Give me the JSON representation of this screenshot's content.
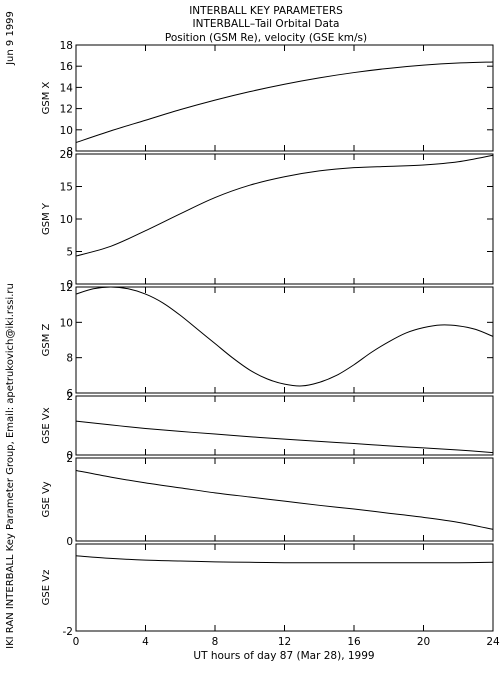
{
  "header": {
    "line1": "INTERBALL KEY PARAMETERS",
    "line2": "INTERBALL–Tail Orbital Data",
    "line3": "Position (GSM Re), velocity (GSE km/s)"
  },
  "side": {
    "date": "Jun  9 1999",
    "credit": "IKI RAN INTERBALL Key Parameter Group, Email: apetrukovich@iki.rssi.ru"
  },
  "chart_data": {
    "type": "line",
    "xlabel": "UT hours of day  87 (Mar 28), 1999",
    "xlim": [
      0,
      24
    ],
    "xticks": [
      0,
      4,
      8,
      12,
      16,
      20,
      24
    ],
    "panels": [
      {
        "ylabel": "GSM X",
        "ylim": [
          8,
          18
        ],
        "yticks": [
          8,
          10,
          12,
          14,
          16,
          18
        ],
        "x": [
          0,
          2,
          4,
          6,
          8,
          10,
          12,
          14,
          16,
          18,
          20,
          22,
          24
        ],
        "y": [
          8.8,
          9.9,
          10.9,
          11.9,
          12.8,
          13.6,
          14.3,
          14.9,
          15.4,
          15.8,
          16.1,
          16.3,
          16.4
        ]
      },
      {
        "ylabel": "GSM Y",
        "ylim": [
          0,
          20
        ],
        "yticks": [
          0,
          5,
          10,
          15,
          20
        ],
        "x": [
          0,
          2,
          4,
          6,
          8,
          10,
          12,
          14,
          16,
          18,
          20,
          22,
          24
        ],
        "y": [
          4.3,
          5.8,
          8.2,
          10.8,
          13.3,
          15.2,
          16.5,
          17.4,
          17.9,
          18.1,
          18.3,
          18.8,
          19.8
        ]
      },
      {
        "ylabel": "GSM Z",
        "ylim": [
          6,
          12
        ],
        "yticks": [
          6,
          8,
          10,
          12
        ],
        "x": [
          0,
          1,
          2,
          3,
          4,
          5,
          6,
          7,
          8,
          9,
          10,
          11,
          12,
          13,
          14,
          15,
          16,
          17,
          18,
          19,
          20,
          21,
          22,
          23,
          24
        ],
        "y": [
          11.6,
          11.9,
          12.0,
          11.9,
          11.6,
          11.1,
          10.4,
          9.6,
          8.8,
          8.0,
          7.3,
          6.8,
          6.5,
          6.4,
          6.6,
          7.0,
          7.6,
          8.3,
          8.9,
          9.4,
          9.7,
          9.85,
          9.8,
          9.6,
          9.2
        ]
      },
      {
        "ylabel": "GSE Vx",
        "ylim": [
          0,
          2
        ],
        "yticks": [
          0,
          2
        ],
        "x": [
          0,
          2,
          4,
          6,
          8,
          10,
          12,
          14,
          16,
          18,
          20,
          22,
          24
        ],
        "y": [
          1.15,
          1.02,
          0.9,
          0.8,
          0.71,
          0.62,
          0.54,
          0.46,
          0.39,
          0.31,
          0.24,
          0.17,
          0.08
        ]
      },
      {
        "ylabel": "GSE Vy",
        "ylim": [
          0,
          2
        ],
        "yticks": [
          0,
          2
        ],
        "x": [
          0,
          2,
          4,
          6,
          8,
          10,
          12,
          14,
          16,
          18,
          20,
          22,
          24
        ],
        "y": [
          1.7,
          1.54,
          1.4,
          1.28,
          1.16,
          1.06,
          0.96,
          0.86,
          0.77,
          0.67,
          0.57,
          0.45,
          0.28
        ]
      },
      {
        "ylabel": "GSE Vz",
        "ylim": [
          -2,
          0
        ],
        "yticks": [
          -2
        ],
        "x": [
          0,
          2,
          4,
          6,
          8,
          10,
          12,
          14,
          16,
          18,
          20,
          22,
          24
        ],
        "y": [
          -0.27,
          -0.33,
          -0.37,
          -0.39,
          -0.41,
          -0.42,
          -0.43,
          -0.43,
          -0.43,
          -0.43,
          -0.43,
          -0.43,
          -0.42
        ]
      }
    ]
  }
}
